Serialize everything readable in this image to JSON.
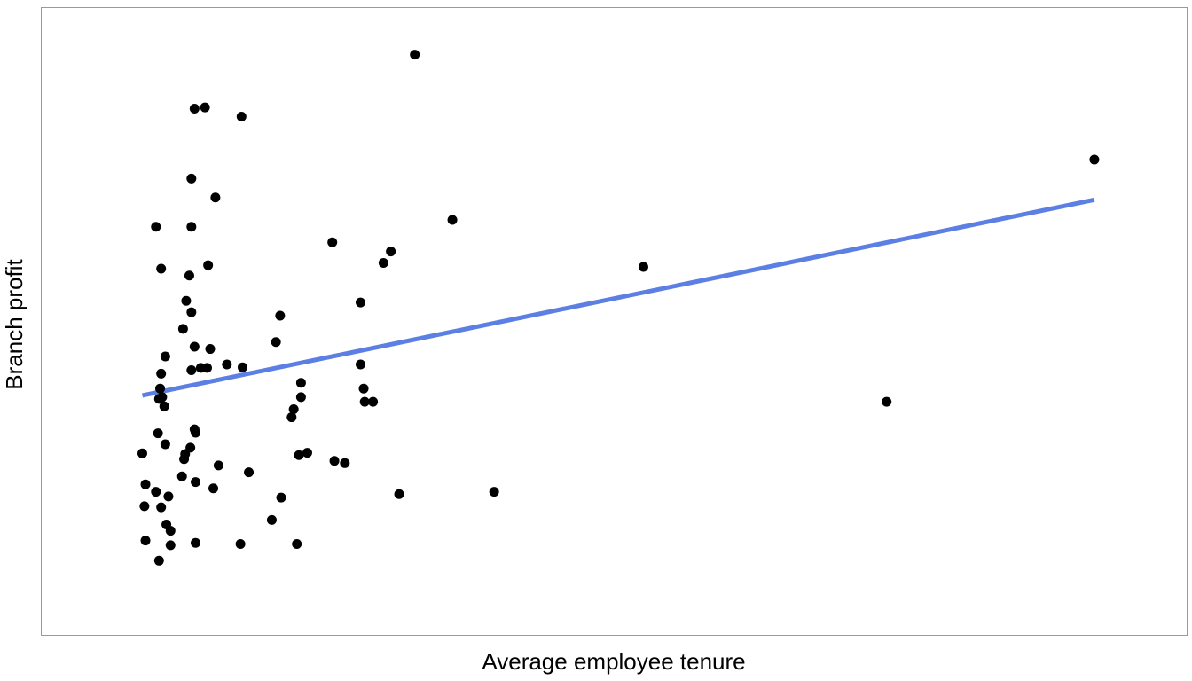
{
  "chart_data": {
    "type": "scatter",
    "title": "",
    "xlabel": "Average employee tenure",
    "ylabel": "Branch profit",
    "xlim": [
      0,
      100
    ],
    "ylim": [
      0,
      100
    ],
    "grid": false,
    "axis_ticks": "none",
    "points": [
      [
        30.9,
        96.5
      ],
      [
        9.8,
        87.1
      ],
      [
        10.8,
        87.3
      ],
      [
        14.3,
        85.7
      ],
      [
        96.0,
        78.2
      ],
      [
        9.5,
        74.9
      ],
      [
        11.8,
        71.6
      ],
      [
        34.5,
        67.7
      ],
      [
        6.1,
        66.5
      ],
      [
        9.5,
        66.5
      ],
      [
        23.0,
        63.8
      ],
      [
        28.6,
        62.2
      ],
      [
        27.9,
        60.2
      ],
      [
        52.8,
        59.5
      ],
      [
        6.6,
        59.2
      ],
      [
        11.1,
        59.8
      ],
      [
        9.3,
        58.0
      ],
      [
        9.0,
        53.6
      ],
      [
        25.7,
        53.3
      ],
      [
        9.5,
        51.6
      ],
      [
        18.0,
        51.0
      ],
      [
        8.7,
        48.7
      ],
      [
        17.6,
        46.4
      ],
      [
        9.8,
        45.6
      ],
      [
        11.3,
        45.2
      ],
      [
        7.0,
        43.9
      ],
      [
        12.9,
        42.5
      ],
      [
        11.0,
        41.9
      ],
      [
        10.4,
        41.9
      ],
      [
        9.5,
        41.5
      ],
      [
        14.4,
        42.0
      ],
      [
        6.6,
        40.9
      ],
      [
        25.7,
        42.5
      ],
      [
        20.0,
        39.3
      ],
      [
        6.5,
        38.3
      ],
      [
        6.7,
        36.8
      ],
      [
        6.4,
        36.5
      ],
      [
        20.0,
        36.8
      ],
      [
        26.0,
        38.3
      ],
      [
        26.1,
        36.0
      ],
      [
        26.9,
        36.0
      ],
      [
        6.9,
        35.2
      ],
      [
        19.3,
        34.7
      ],
      [
        76.1,
        36.0
      ],
      [
        19.1,
        33.3
      ],
      [
        9.8,
        31.2
      ],
      [
        6.3,
        30.5
      ],
      [
        9.9,
        30.6
      ],
      [
        7.0,
        28.6
      ],
      [
        9.4,
        28.0
      ],
      [
        8.8,
        26.0
      ],
      [
        20.6,
        27.1
      ],
      [
        8.9,
        26.9
      ],
      [
        4.8,
        27.0
      ],
      [
        23.2,
        25.7
      ],
      [
        19.8,
        26.7
      ],
      [
        24.2,
        25.3
      ],
      [
        8.6,
        23.0
      ],
      [
        12.1,
        24.9
      ],
      [
        15.0,
        23.7
      ],
      [
        9.9,
        22.0
      ],
      [
        11.6,
        20.9
      ],
      [
        5.1,
        21.6
      ],
      [
        6.1,
        20.3
      ],
      [
        7.3,
        19.5
      ],
      [
        29.4,
        19.9
      ],
      [
        38.5,
        20.3
      ],
      [
        18.1,
        19.3
      ],
      [
        5.0,
        17.8
      ],
      [
        6.6,
        17.6
      ],
      [
        17.2,
        15.4
      ],
      [
        7.1,
        14.6
      ],
      [
        7.5,
        13.5
      ],
      [
        5.1,
        11.8
      ],
      [
        9.9,
        11.4
      ],
      [
        14.2,
        11.2
      ],
      [
        19.6,
        11.2
      ],
      [
        7.5,
        11.0
      ],
      [
        6.4,
        8.3
      ]
    ],
    "trend_line": {
      "x": [
        4.8,
        96.0
      ],
      "y": [
        37.1,
        71.2
      ],
      "color": "#5B7FE3"
    },
    "point_color": "#000000"
  }
}
